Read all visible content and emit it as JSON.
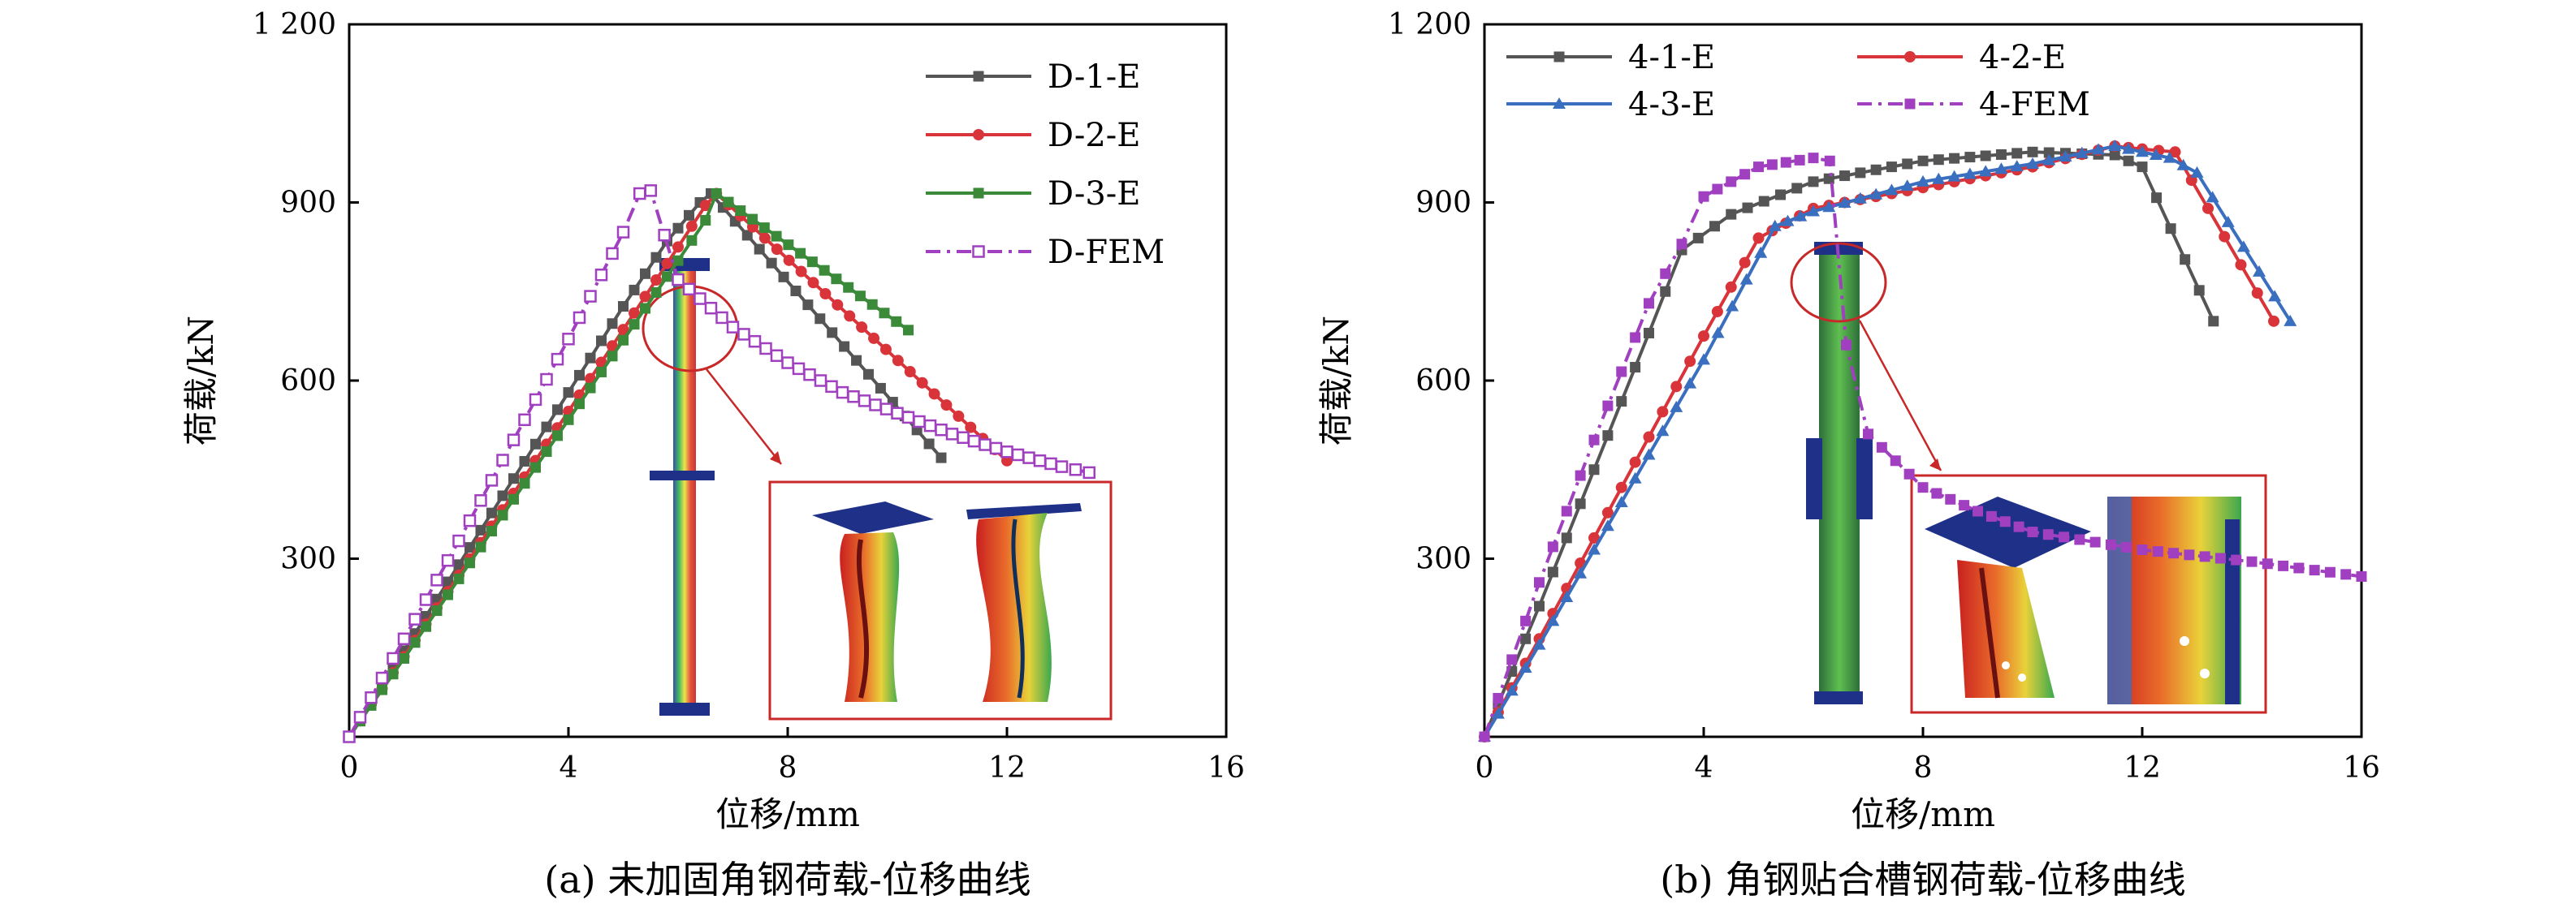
{
  "chart_data": [
    {
      "type": "line",
      "caption": "(a) 未加固角钢荷载-位移曲线",
      "xlabel": "位移/mm",
      "ylabel": "荷载/kN",
      "xlim": [
        0,
        16
      ],
      "ylim": [
        0,
        1200
      ],
      "xticks": [
        "0",
        "4",
        "8",
        "12",
        "16"
      ],
      "yticks": [
        "300",
        "600",
        "900",
        "1 200"
      ],
      "legend_position": "top-right",
      "series": [
        {
          "name": "D-1-E",
          "color": "#555555",
          "marker": "square-filled",
          "dash": "solid",
          "x": [
            0,
            1,
            2,
            3,
            4,
            5,
            5.8,
            6.4,
            6.6,
            10.8
          ],
          "y": [
            0,
            145,
            290,
            435,
            580,
            725,
            835,
            900,
            915,
            470
          ]
        },
        {
          "name": "D-2-E",
          "color": "#d9343a",
          "marker": "circle-filled",
          "dash": "solid",
          "x": [
            0,
            1,
            2,
            3,
            4,
            5,
            6,
            6.5,
            6.7,
            12
          ],
          "y": [
            0,
            135,
            272,
            410,
            548,
            686,
            825,
            895,
            915,
            465
          ]
        },
        {
          "name": "D-3-E",
          "color": "#3a8a3a",
          "marker": "square-filled",
          "dash": "solid",
          "x": [
            0,
            1,
            2,
            3,
            4,
            5,
            6,
            6.5,
            6.7,
            10.2
          ],
          "y": [
            0,
            132,
            266,
            400,
            534,
            668,
            802,
            870,
            915,
            685
          ]
        },
        {
          "name": "D-FEM",
          "color": "#a040c0",
          "marker": "square-open",
          "dash": "dashdot",
          "x": [
            0,
            1,
            2,
            3,
            4,
            5,
            5.3,
            5.5,
            6,
            7,
            8,
            9,
            10,
            11,
            12,
            13,
            13.5
          ],
          "y": [
            0,
            165,
            330,
            500,
            670,
            850,
            915,
            920,
            770,
            690,
            630,
            580,
            545,
            510,
            480,
            455,
            445
          ]
        }
      ]
    },
    {
      "type": "line",
      "caption": "(b) 角钢贴合槽钢荷载-位移曲线",
      "xlabel": "位移/mm",
      "ylabel": "荷载/kN",
      "xlim": [
        0,
        16
      ],
      "ylim": [
        0,
        1200
      ],
      "xticks": [
        "0",
        "4",
        "8",
        "12",
        "16"
      ],
      "yticks": [
        "300",
        "600",
        "900",
        "1 200"
      ],
      "legend_position": "top-left",
      "series": [
        {
          "name": "4-1-E",
          "color": "#555555",
          "marker": "square-filled",
          "dash": "solid",
          "x": [
            0,
            1,
            2,
            3,
            3.6,
            4.5,
            6,
            8,
            10,
            11.5,
            12,
            13.3
          ],
          "y": [
            0,
            220,
            450,
            680,
            820,
            880,
            935,
            970,
            985,
            980,
            960,
            700
          ]
        },
        {
          "name": "4-2-E",
          "color": "#d9343a",
          "marker": "circle-filled",
          "dash": "solid",
          "x": [
            0,
            1,
            2,
            3,
            4,
            5,
            6,
            8,
            10,
            11.5,
            12,
            12.6,
            14.4
          ],
          "y": [
            0,
            165,
            335,
            505,
            675,
            840,
            890,
            925,
            960,
            995,
            990,
            985,
            700
          ]
        },
        {
          "name": "4-3-E",
          "color": "#3a6fc0",
          "marker": "triangle-filled",
          "dash": "solid",
          "x": [
            0,
            1,
            2,
            3,
            4,
            5.3,
            6,
            8,
            10,
            11.5,
            12.5,
            13,
            14.7
          ],
          "y": [
            0,
            155,
            315,
            475,
            635,
            860,
            885,
            935,
            965,
            995,
            975,
            950,
            700
          ]
        },
        {
          "name": "4-FEM",
          "color": "#a040c0",
          "marker": "square-filled",
          "dash": "dashdot",
          "x": [
            0,
            1,
            2,
            3,
            3.6,
            4,
            5,
            6,
            6.3,
            6.6,
            7,
            8,
            9,
            10,
            12,
            14,
            16
          ],
          "y": [
            0,
            260,
            500,
            730,
            830,
            910,
            960,
            975,
            970,
            660,
            510,
            420,
            380,
            345,
            315,
            295,
            270
          ]
        }
      ]
    }
  ]
}
